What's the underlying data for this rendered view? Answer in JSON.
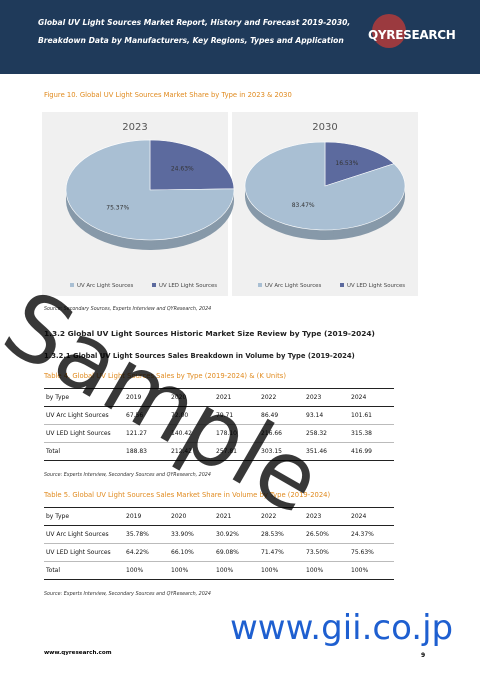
{
  "header": {
    "title": "Global UV Light Sources Market Report, History and Forecast 2019-2030, Breakdown Data by Manufacturers, Key Regions, Types and Application",
    "logo": "QYRESEARCH"
  },
  "figure": {
    "caption": "Figure 10.   Global UV Light Sources Market Share by Type in 2023 & 2030",
    "source": "Source: Secondary Sources, Experts Interview and QYResearch, 2024"
  },
  "chart_data": [
    {
      "type": "pie",
      "title": "2023",
      "categories": [
        "UV Arc Light Sources",
        "UV LED Light Sources"
      ],
      "values": [
        75.37,
        24.63
      ],
      "value_labels": [
        "75.37%",
        "24.63%"
      ],
      "colors": [
        "#a9bfd3",
        "#5c6a9e"
      ]
    },
    {
      "type": "pie",
      "title": "2030",
      "categories": [
        "UV Arc Light Sources",
        "UV LED Light Sources"
      ],
      "values": [
        83.47,
        16.53
      ],
      "value_labels": [
        "83.47%",
        "16.53%"
      ],
      "colors": [
        "#a9bfd3",
        "#5c6a9e"
      ]
    }
  ],
  "headings": [
    "1.3.2  Global UV Light Sources Historic Market Size Review by Type (2019-2024)",
    "1.3.2.1  Global UV Light Sources Sales Breakdown in Volume by Type (2019-2024)"
  ],
  "tables": [
    {
      "caption": "Table 4.   Global UV Light Sources Sales by Type (2019-2024) & (K Units)",
      "header": [
        "by Type",
        "2019",
        "2020",
        "2021",
        "2022",
        "2023",
        "2024"
      ],
      "rows": [
        [
          "UV Arc Light Sources",
          "67.56",
          "72.00",
          "79.71",
          "86.49",
          "93.14",
          "101.61"
        ],
        [
          "UV LED Light Sources",
          "121.27",
          "140.42",
          "178.10",
          "216.66",
          "258.32",
          "315.38"
        ],
        [
          "Total",
          "188.83",
          "212.42",
          "257.81",
          "303.15",
          "351.46",
          "416.99"
        ]
      ],
      "source": "Source: Experts Interview, Secondary Sources and QYResearch, 2024"
    },
    {
      "caption": "Table 5.   Global UV Light Sources Sales Market Share in Volume by Type (2019-2024)",
      "header": [
        "by Type",
        "2019",
        "2020",
        "2021",
        "2022",
        "2023",
        "2024"
      ],
      "rows": [
        [
          "UV Arc Light Sources",
          "35.78%",
          "33.90%",
          "30.92%",
          "28.53%",
          "26.50%",
          "24.37%"
        ],
        [
          "UV LED Light Sources",
          "64.22%",
          "66.10%",
          "69.08%",
          "71.47%",
          "73.50%",
          "75.63%"
        ],
        [
          "Total",
          "100%",
          "100%",
          "100%",
          "100%",
          "100%",
          "100%"
        ]
      ],
      "source": "Source: Experts Interview, Secondary Sources and QYResearch, 2024"
    }
  ],
  "watermark": [
    "Sample",
    "www.gii.co.jp"
  ],
  "footer": {
    "url": "www.qyresearch.com",
    "page": "9"
  }
}
